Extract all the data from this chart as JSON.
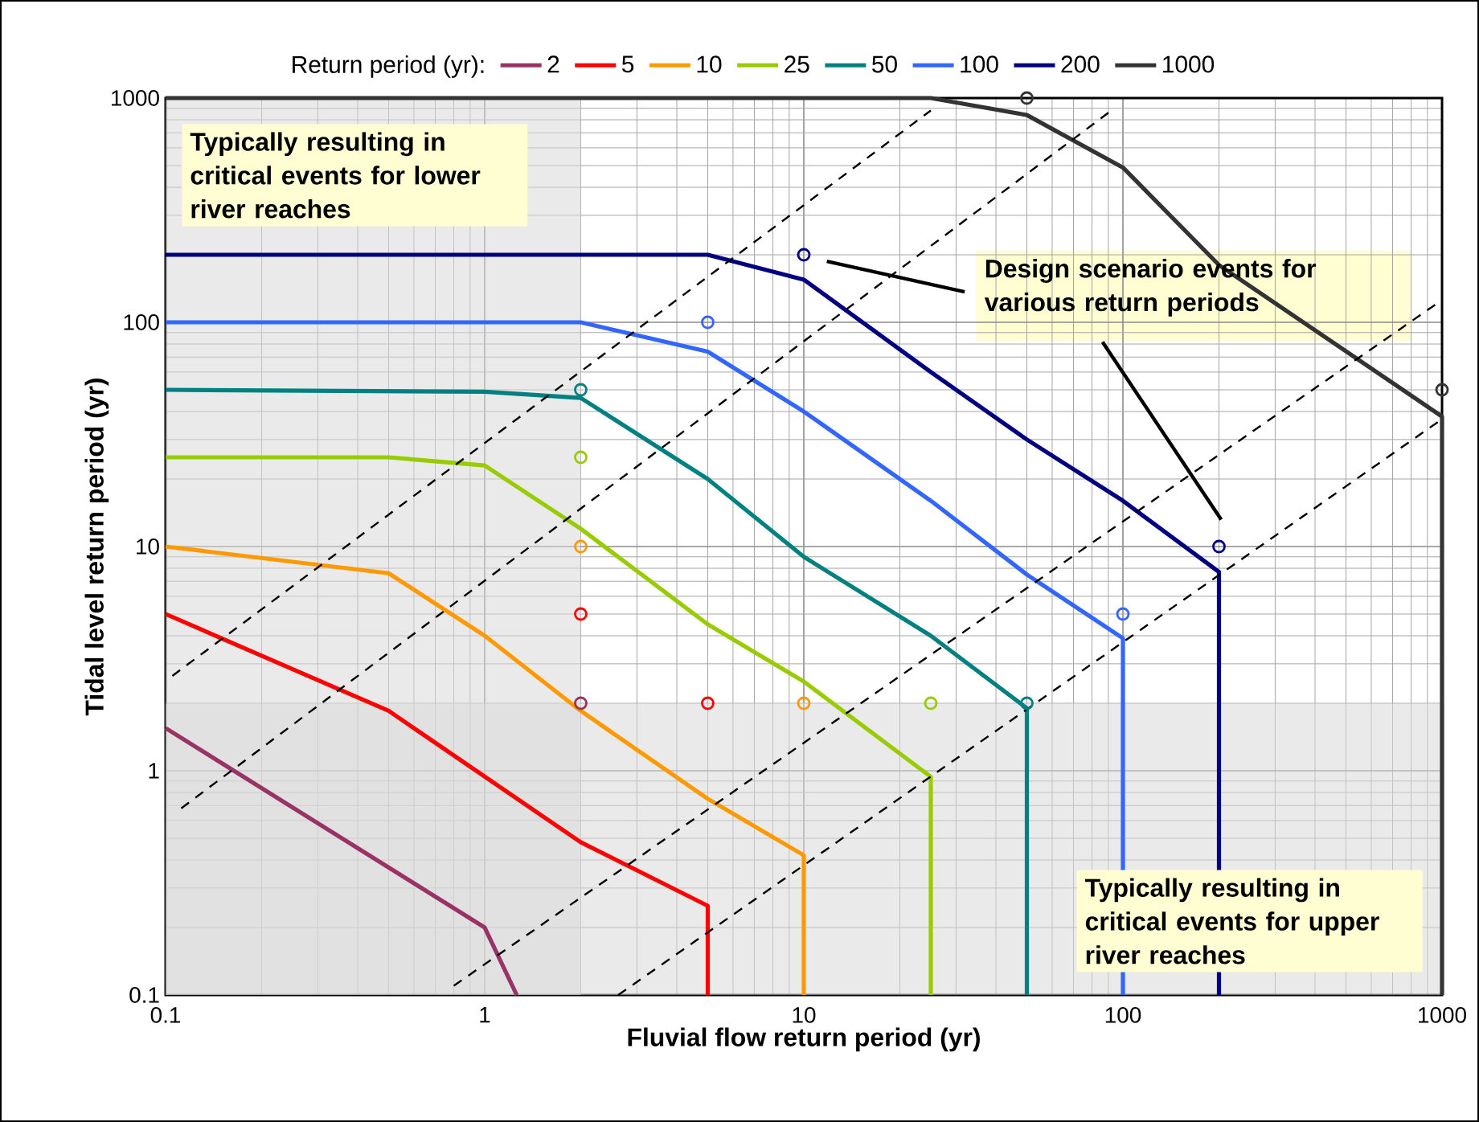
{
  "chart_data": {
    "type": "line",
    "xlabel": "Fluvial flow return period (yr)",
    "ylabel": "Tidal level return period (yr)",
    "legend_title": "Return period (yr):",
    "log": "xy",
    "xlim": [
      0.1,
      1000
    ],
    "ylim": [
      0.1,
      1000
    ],
    "xticks": [
      0.1,
      1,
      10,
      100,
      1000
    ],
    "yticks": [
      0.1,
      1,
      10,
      100,
      1000
    ],
    "grid": true,
    "legend": "top",
    "marker": "none",
    "bands": [
      {
        "axis": "x",
        "from": 0.1,
        "to": 2,
        "label": "Typically resulting in critical events for lower river reaches",
        "color": "#d9d9d9"
      },
      {
        "axis": "y",
        "from": 0.1,
        "to": 2,
        "label": "Typically resulting in critical events for upper river reaches",
        "color": "#d9d9d9"
      }
    ],
    "annotations": [
      "Design scenario events for various return periods"
    ],
    "series": [
      {
        "name": "2",
        "color": "#993366",
        "x": [
          0.1,
          1,
          1.26
        ],
        "values": [
          1.55,
          0.2,
          0.1
        ]
      },
      {
        "name": "5",
        "color": "#ff0000",
        "x": [
          0.1,
          0.5,
          2,
          5,
          5
        ],
        "values": [
          5,
          1.85,
          0.48,
          0.25,
          0.1
        ]
      },
      {
        "name": "10",
        "color": "#ff9900",
        "x": [
          0.1,
          0.5,
          1,
          2,
          5,
          10,
          10
        ],
        "values": [
          10,
          7.6,
          4,
          1.85,
          0.75,
          0.42,
          0.1
        ]
      },
      {
        "name": "25",
        "color": "#99cc00",
        "x": [
          0.1,
          0.5,
          1,
          2,
          5,
          10,
          25,
          25
        ],
        "values": [
          25,
          25,
          23,
          12,
          4.5,
          2.5,
          0.94,
          0.1
        ]
      },
      {
        "name": "50",
        "color": "#008080",
        "x": [
          0.1,
          1,
          2,
          5,
          10,
          25,
          50,
          50
        ],
        "values": [
          50,
          49,
          46,
          20,
          9,
          4,
          1.9,
          0.1
        ]
      },
      {
        "name": "100",
        "color": "#3366ff",
        "x": [
          0.1,
          2,
          5,
          10,
          25,
          50,
          100,
          100
        ],
        "values": [
          100,
          100,
          74,
          40,
          16,
          7.5,
          3.9,
          0.1
        ]
      },
      {
        "name": "200",
        "color": "#000080",
        "x": [
          0.1,
          5,
          10,
          25,
          50,
          100,
          200,
          200
        ],
        "values": [
          200,
          200,
          155,
          60,
          30,
          16,
          7.7,
          0.1
        ]
      },
      {
        "name": "1000",
        "color": "#333333",
        "x": [
          0.1,
          25,
          50,
          100,
          200,
          1000,
          1000
        ],
        "values": [
          1000,
          1000,
          840,
          490,
          180,
          38,
          0.1
        ]
      },
      {
        "type": "scatter",
        "marker": "circle",
        "color": "#993366",
        "x": [
          2
        ],
        "values": [
          2
        ]
      },
      {
        "type": "scatter",
        "marker": "circle",
        "color": "#ff0000",
        "x": [
          2,
          5
        ],
        "values": [
          5,
          2
        ]
      },
      {
        "type": "scatter",
        "marker": "circle",
        "color": "#ff9900",
        "x": [
          2,
          10
        ],
        "values": [
          10,
          2
        ]
      },
      {
        "type": "scatter",
        "marker": "circle",
        "color": "#99cc00",
        "x": [
          2,
          25
        ],
        "values": [
          25,
          2
        ]
      },
      {
        "type": "scatter",
        "marker": "circle",
        "color": "#008080",
        "x": [
          2,
          50
        ],
        "values": [
          50,
          2
        ]
      },
      {
        "type": "scatter",
        "marker": "circle",
        "color": "#3366ff",
        "x": [
          5,
          100
        ],
        "values": [
          100,
          5
        ]
      },
      {
        "type": "scatter",
        "marker": "circle",
        "color": "#000080",
        "x": [
          10,
          200
        ],
        "values": [
          200,
          10
        ]
      },
      {
        "type": "scatter",
        "marker": "circle",
        "color": "#333333",
        "x": [
          50,
          1000
        ],
        "values": [
          1000,
          50
        ]
      },
      {
        "line_style": "dashed",
        "color": "#000000",
        "x": [
          0.105,
          25
        ],
        "values": [
          2.65,
          880
        ]
      },
      {
        "line_style": "dashed",
        "color": "#000000",
        "x": [
          0.112,
          92
        ],
        "values": [
          0.68,
          880
        ]
      },
      {
        "line_style": "dashed",
        "color": "#000000",
        "x": [
          0.8,
          970
        ],
        "values": [
          0.11,
          122
        ]
      },
      {
        "line_style": "dashed",
        "color": "#000000",
        "x": [
          2.62,
          1000
        ],
        "values": [
          0.1,
          37
        ]
      }
    ]
  }
}
